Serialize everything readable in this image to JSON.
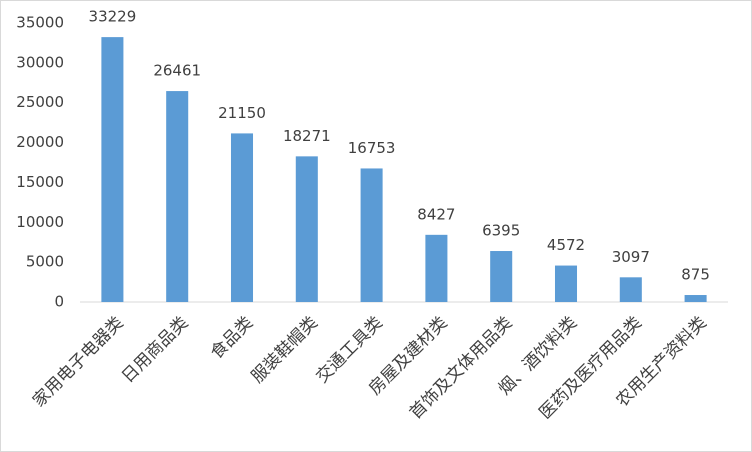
{
  "chart_data": {
    "type": "bar",
    "categories": [
      "家用电子电器类",
      "日用商品类",
      "食品类",
      "服装鞋帽类",
      "交通工具类",
      "房屋及建材类",
      "首饰及文体用品类",
      "烟、酒饮料类",
      "医药及医疗用品类",
      "农用生产资料类"
    ],
    "values": [
      33229,
      26461,
      21150,
      18271,
      16753,
      8427,
      6395,
      4572,
      3097,
      875
    ],
    "color": "#5b9bd5",
    "ylim": [
      0,
      35000
    ],
    "yticks": [
      0,
      5000,
      10000,
      15000,
      20000,
      25000,
      30000,
      35000
    ],
    "grid": false,
    "data_labels": true
  }
}
